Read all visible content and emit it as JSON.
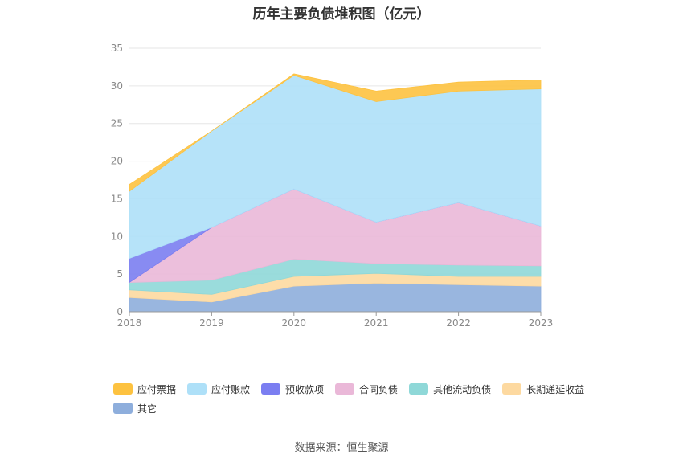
{
  "title": "历年主要负债堆积图（亿元）",
  "source": "数据来源：恒生聚源",
  "chart_data": {
    "type": "area",
    "stacked": true,
    "categories": [
      "2018",
      "2019",
      "2020",
      "2021",
      "2022",
      "2023"
    ],
    "y_ticks": [
      "0",
      "5",
      "10",
      "15",
      "20",
      "25",
      "30",
      "35"
    ],
    "ylim": [
      0,
      35
    ],
    "grid": true,
    "legend_position": "bottom",
    "series": [
      {
        "name": "其它",
        "color": "#8eaedc",
        "values": [
          1.9,
          1.3,
          3.4,
          3.8,
          3.6,
          3.4
        ]
      },
      {
        "name": "长期递延收益",
        "color": "#fdd9a0",
        "values": [
          1.0,
          1.0,
          1.3,
          1.3,
          1.1,
          1.3
        ]
      },
      {
        "name": "其他流动负债",
        "color": "#8fd8d8",
        "values": [
          1.0,
          1.9,
          2.3,
          1.3,
          1.5,
          1.4
        ]
      },
      {
        "name": "合同负债",
        "color": "#eab8d8",
        "values": [
          0.0,
          7.0,
          9.3,
          5.5,
          8.3,
          5.3
        ]
      },
      {
        "name": "预收款项",
        "color": "#7b7ef1",
        "values": [
          3.2,
          0.0,
          0.0,
          0.0,
          0.0,
          0.0
        ]
      },
      {
        "name": "应付账款",
        "color": "#aee0f8",
        "values": [
          8.9,
          12.8,
          15.1,
          16.0,
          14.8,
          18.2
        ]
      },
      {
        "name": "应付票据",
        "color": "#fdc240",
        "values": [
          0.9,
          0.0,
          0.2,
          1.4,
          1.2,
          1.2
        ]
      }
    ],
    "legend_order": [
      "应付票据",
      "应付账款",
      "预收款项",
      "合同负债",
      "其他流动负债",
      "长期递延收益",
      "其它"
    ]
  }
}
